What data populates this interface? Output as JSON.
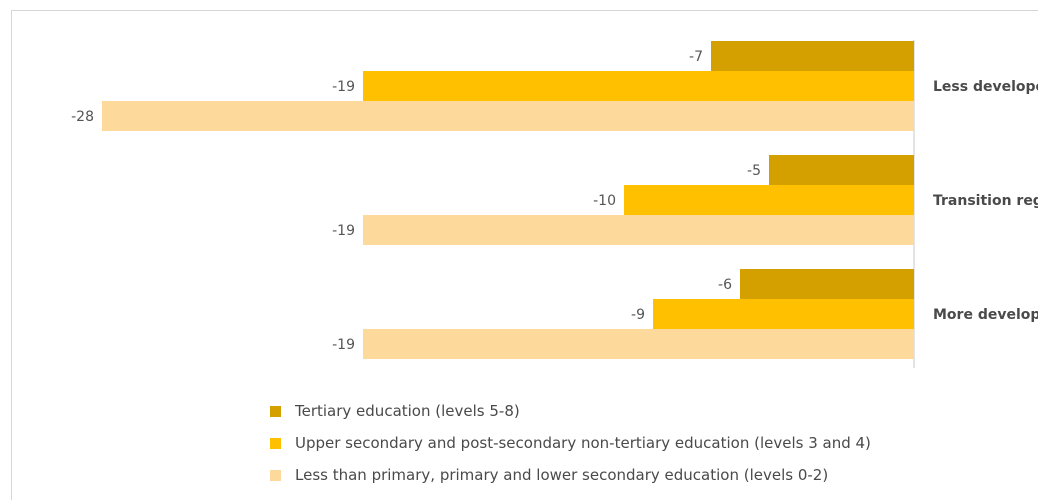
{
  "chart_data": {
    "type": "bar",
    "orientation": "horizontal",
    "categories": [
      "Less developed regions",
      "Transition regions",
      "More developed regions"
    ],
    "series": [
      {
        "name": "Tertiary education (levels 5-8)",
        "color": "#d4a000",
        "values": [
          -7,
          -5,
          -6
        ]
      },
      {
        "name": "Upper secondary and post-secondary non-tertiary education (levels 3 and 4)",
        "color": "#ffc000",
        "values": [
          -19,
          -10,
          -9
        ]
      },
      {
        "name": "Less than primary, primary and lower secondary education (levels 0-2)",
        "color": "#fdd99b",
        "values": [
          -28,
          -19,
          -19
        ]
      }
    ],
    "value_labels": [
      [
        "-7",
        "-19",
        "-28"
      ],
      [
        "-5",
        "-10",
        "-19"
      ],
      [
        "-6",
        "-9",
        "-19"
      ]
    ],
    "xlim": [
      -28,
      0
    ],
    "legend_position": "bottom"
  }
}
